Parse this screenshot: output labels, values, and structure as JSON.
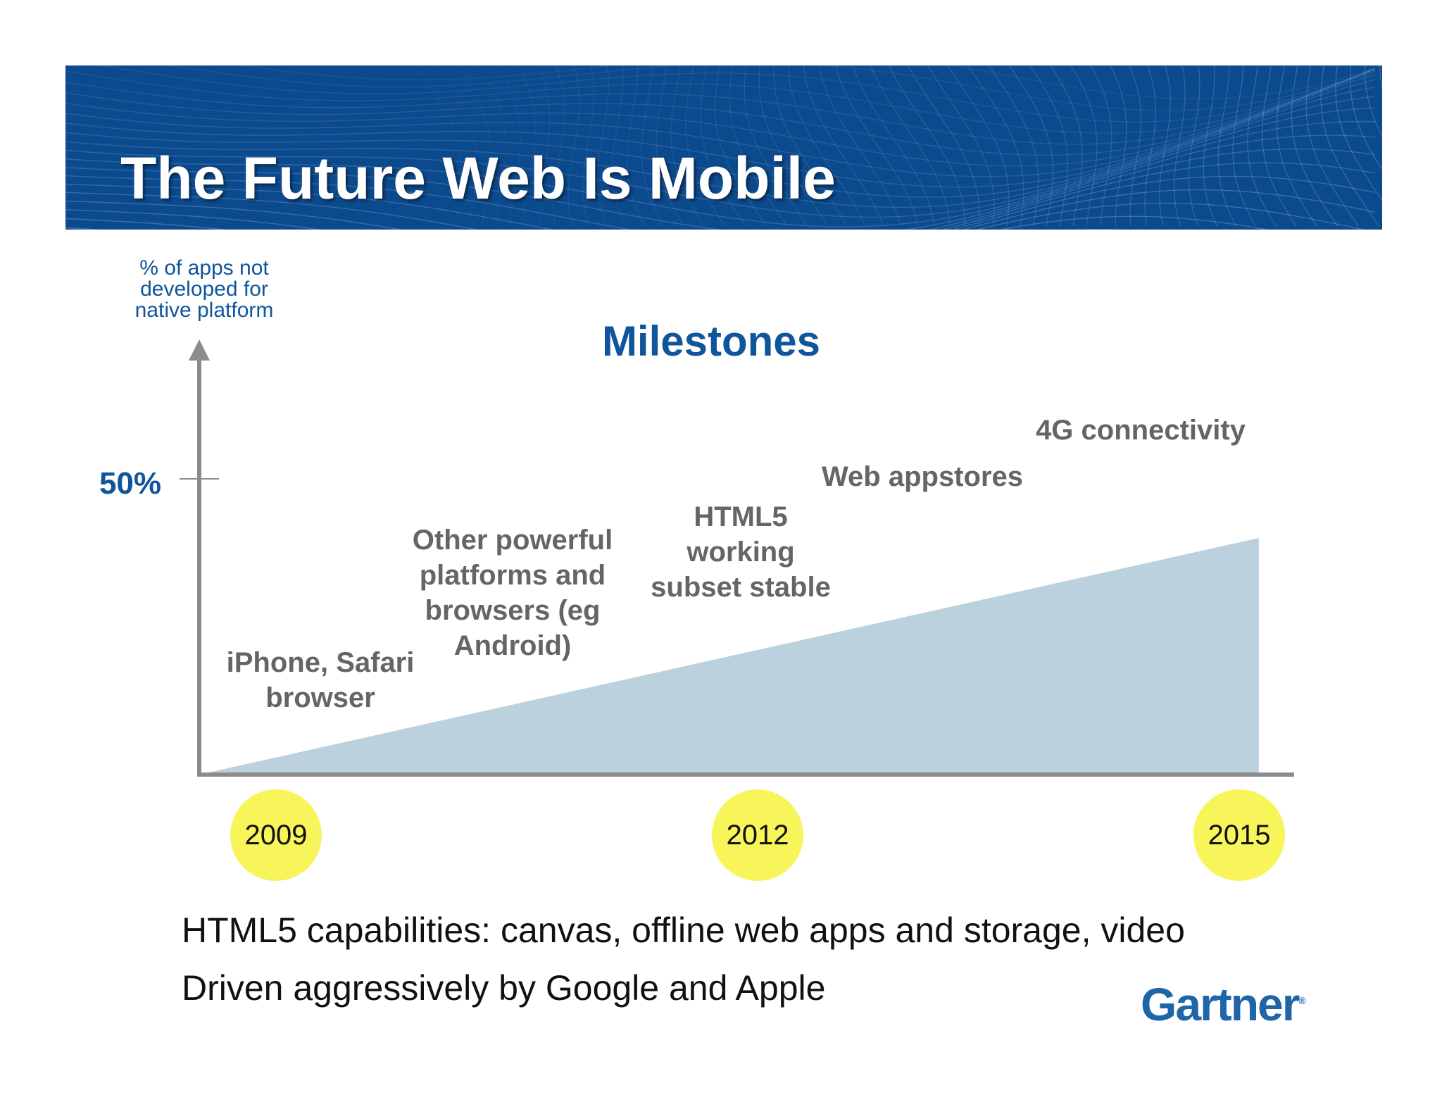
{
  "slide": {
    "title": "The Future Web Is Mobile",
    "bullets": [
      "HTML5 capabilities: canvas, offline web apps and storage, video",
      "Driven aggressively by Google and Apple"
    ],
    "logo": "Gartner",
    "logo_mark": "®"
  },
  "colors": {
    "banner": "#0c4a8e",
    "accent_blue": "#0f559c",
    "area_fill": "#bcd1de",
    "axis": "#8c8c8c",
    "milestone_text": "#636569",
    "year_badge": "#f7f55a"
  },
  "chart_data": {
    "type": "area",
    "title": "Milestones",
    "ylabel": [
      "% of apps not",
      "developed for",
      "native platform"
    ],
    "yticks": [
      {
        "value": 50,
        "label": "50%"
      }
    ],
    "ylim": [
      0,
      100
    ],
    "xlim": [
      2009,
      2015.2
    ],
    "x_ticks": [
      "2009",
      "2012",
      "2015"
    ],
    "series": [
      {
        "x": [
          2009,
          2015
        ],
        "y": [
          0,
          40
        ]
      }
    ],
    "annotations": [
      {
        "id": "iphone",
        "lines": [
          "iPhone, Safari",
          "browser"
        ]
      },
      {
        "id": "platforms",
        "lines": [
          "Other powerful",
          "platforms and",
          "browsers (eg",
          "Android)"
        ]
      },
      {
        "id": "html5",
        "lines": [
          "HTML5",
          "working",
          "subset stable"
        ]
      },
      {
        "id": "appstores",
        "lines": [
          "Web appstores"
        ]
      },
      {
        "id": "4g",
        "lines": [
          "4G connectivity"
        ]
      }
    ],
    "grid": false,
    "legend": "none"
  }
}
